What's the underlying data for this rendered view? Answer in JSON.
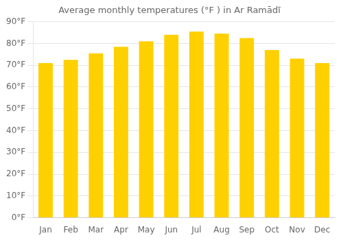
{
  "chart_data": {
    "type": "bar",
    "title": "Average monthly temperatures (°F ) in Ar Ramādī",
    "categories": [
      "Jan",
      "Feb",
      "Mar",
      "Apr",
      "May",
      "Jun",
      "Jul",
      "Aug",
      "Sep",
      "Oct",
      "Nov",
      "Dec"
    ],
    "values": [
      71,
      72.5,
      75.5,
      78.5,
      81,
      84,
      85.5,
      84.5,
      82.5,
      77,
      73,
      71
    ],
    "color": "#FFD000",
    "ylim": [
      0,
      90
    ],
    "yticks": [
      {
        "value": 0,
        "label": "0°F"
      },
      {
        "value": 10,
        "label": "10°F"
      },
      {
        "value": 20,
        "label": "20°F"
      },
      {
        "value": 30,
        "label": "30°F"
      },
      {
        "value": 40,
        "label": "40°F"
      },
      {
        "value": 50,
        "label": "50°F"
      },
      {
        "value": 60,
        "label": "60°F"
      },
      {
        "value": 70,
        "label": "70°F"
      },
      {
        "value": 80,
        "label": "80°F"
      },
      {
        "value": 90,
        "label": "90°F"
      }
    ],
    "grid": true
  }
}
